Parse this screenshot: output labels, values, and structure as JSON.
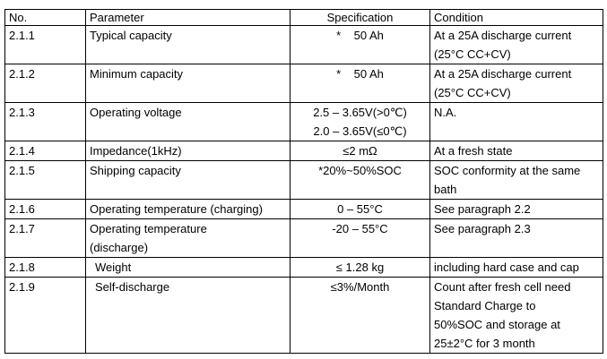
{
  "table": {
    "header": [
      "No.",
      "Parameter",
      "Specification",
      "Condition"
    ],
    "rows": [
      [
        [
          "2.1.1"
        ],
        [
          "Typical capacity"
        ],
        [
          "*    50 Ah"
        ],
        [
          "At a 25A discharge current",
          "(25°C CC+CV)"
        ]
      ],
      [
        [
          "2.1.2"
        ],
        [
          "Minimum capacity"
        ],
        [
          "*    50 Ah"
        ],
        [
          "At a 25A discharge current",
          "(25°C CC+CV)"
        ]
      ],
      [
        [
          "2.1.3"
        ],
        [
          "Operating voltage"
        ],
        [
          "2.5 – 3.65V(>0℃)",
          "2.0 – 3.65V(≤0℃)"
        ],
        [
          "N.A."
        ]
      ],
      [
        [
          "2.1.4"
        ],
        [
          "Impedance(1kHz)"
        ],
        [
          "≤2 mΩ"
        ],
        [
          "At a fresh state"
        ]
      ],
      [
        [
          "2.1.5"
        ],
        [
          "Shipping capacity"
        ],
        [
          "*20%~50%SOC"
        ],
        [
          "SOC conformity at the same",
          "bath"
        ]
      ],
      [
        [
          "2.1.6"
        ],
        [
          "Operating temperature (charging)"
        ],
        [
          "0 – 55°C"
        ],
        [
          "See paragraph 2.2"
        ]
      ],
      [
        [
          "2.1.7"
        ],
        [
          "Operating temperature",
          "(discharge)"
        ],
        [
          "-20 – 55°C"
        ],
        [
          "See paragraph 2.3"
        ]
      ],
      [
        [
          "2.1.8"
        ],
        [
          "Weight"
        ],
        [
          "≤ 1.28 kg"
        ],
        [
          "including hard case and cap"
        ]
      ],
      [
        [
          "2.1.9"
        ],
        [
          "Self-discharge"
        ],
        [
          "≤3%/Month"
        ],
        [
          "Count after fresh cell need",
          "Standard Charge to",
          "50%SOC and storage at",
          "25±2°C for 3 month"
        ]
      ]
    ]
  }
}
